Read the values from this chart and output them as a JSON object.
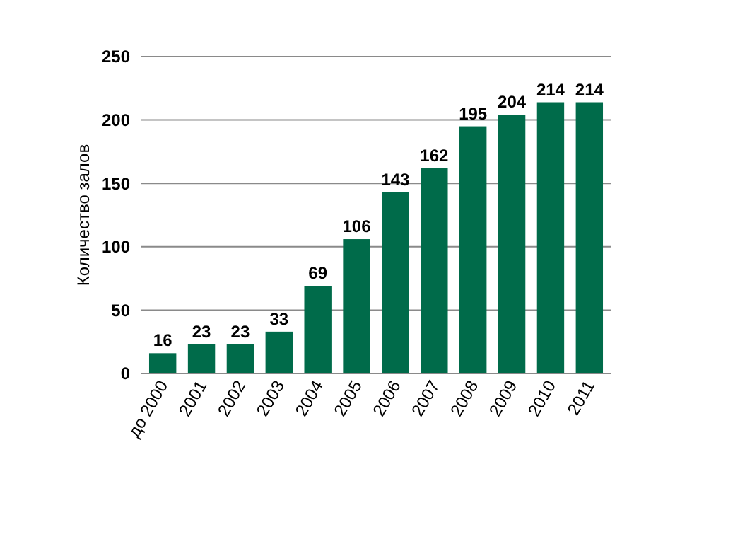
{
  "chart_data": {
    "type": "bar",
    "ylabel": "Количество залов",
    "categories": [
      "до 2000",
      "2001",
      "2002",
      "2003",
      "2004",
      "2005",
      "2006",
      "2007",
      "2008",
      "2009",
      "2010",
      "2011"
    ],
    "values": [
      16,
      23,
      23,
      33,
      69,
      106,
      143,
      162,
      195,
      204,
      214,
      214
    ],
    "color": "#006b4a",
    "ylim": [
      0,
      250
    ],
    "yticks": [
      0,
      50,
      100,
      150,
      200,
      250
    ],
    "grid": "y",
    "data_labels": true
  }
}
